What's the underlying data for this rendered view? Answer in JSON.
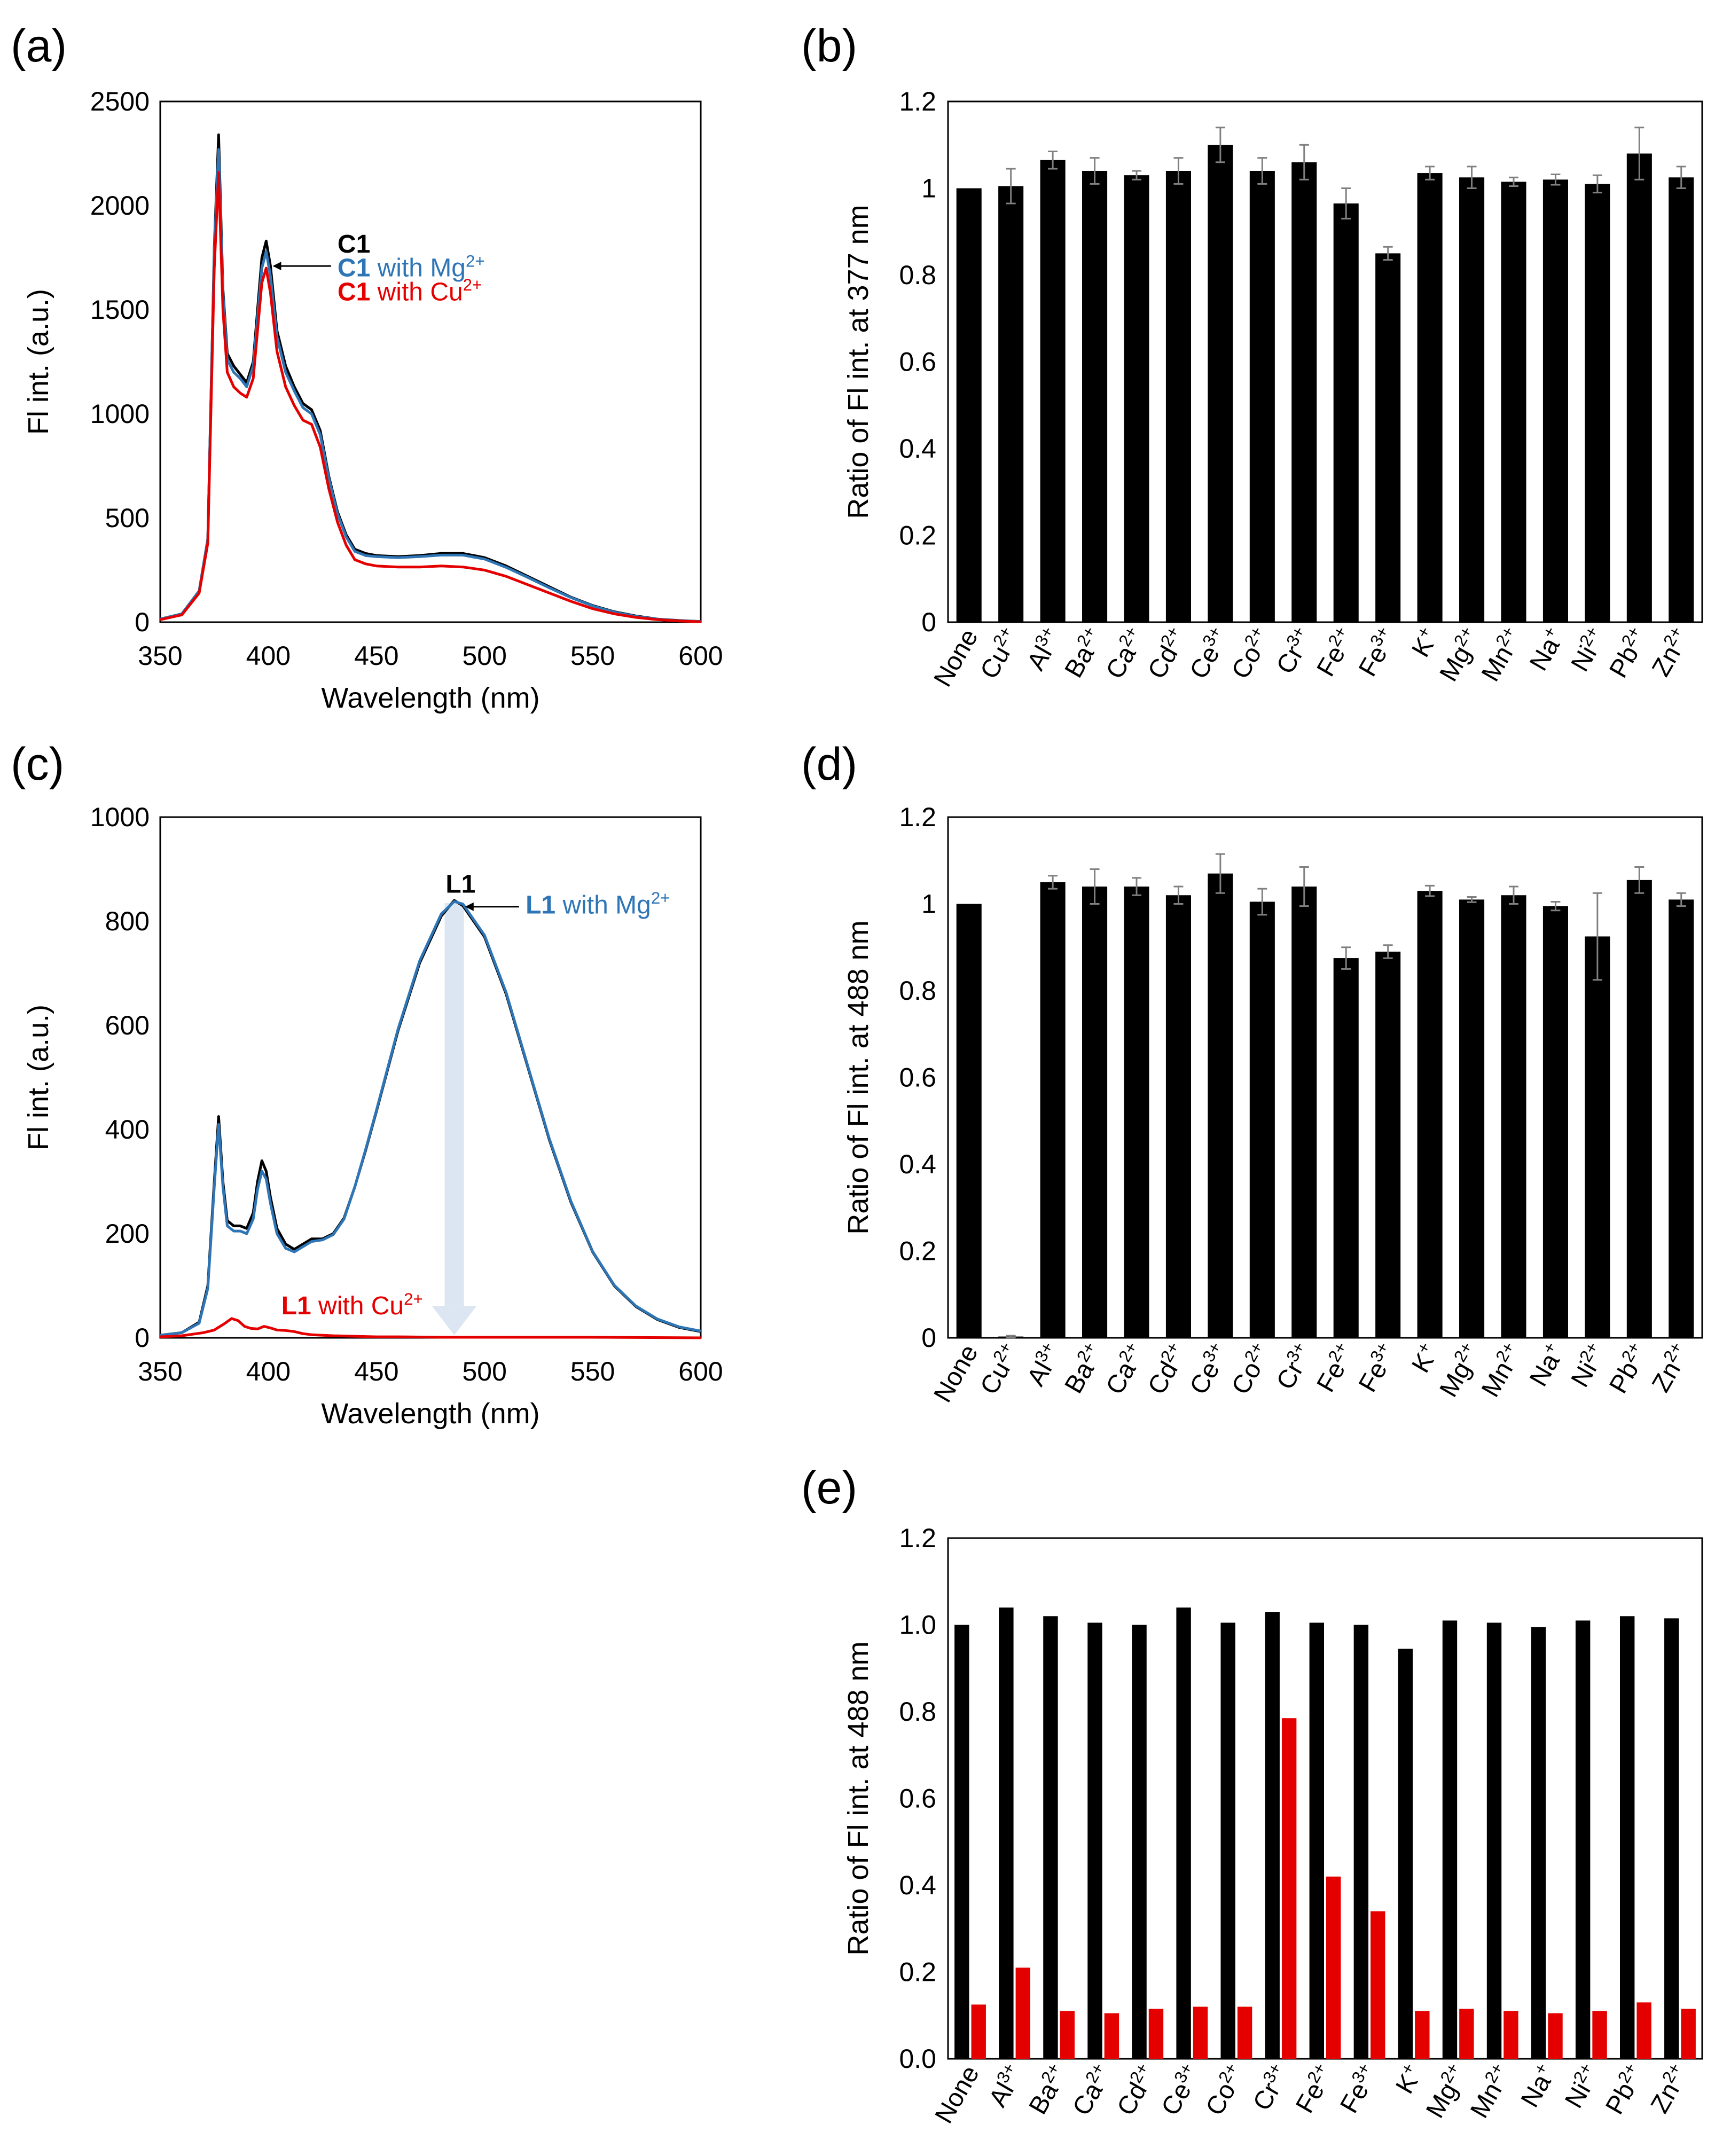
{
  "figure": {
    "panels": [
      "(a)",
      "(b)",
      "(c)",
      "(d)",
      "(e)"
    ]
  },
  "colors": {
    "black": "#000000",
    "blue": "#2E75B6",
    "red": "#E50000",
    "arrow": "#DCE6F2",
    "error_bar": "#808080"
  },
  "chart_data": [
    {
      "panel": "(a)",
      "type": "line",
      "xlabel": "Wavelength (nm)",
      "ylabel": "Fl int. (a.u.)",
      "xlim": [
        350,
        600
      ],
      "ylim": [
        0,
        2500
      ],
      "xticks": [
        350,
        400,
        450,
        500,
        550,
        600
      ],
      "yticks": [
        0,
        500,
        1000,
        1500,
        2000,
        2500
      ],
      "legend": [
        {
          "bold": "C1",
          "rest": "",
          "sup": "",
          "color": "#000000"
        },
        {
          "bold": "C1",
          "rest": " with Mg",
          "sup": "2+",
          "color": "#2E75B6"
        },
        {
          "bold": "C1",
          "rest": " with Cu",
          "sup": "2+",
          "color": "#E50000"
        }
      ],
      "series": [
        {
          "name": "C1",
          "color": "#000000",
          "x": [
            350,
            360,
            368,
            372,
            375,
            377,
            379,
            381,
            384,
            387,
            390,
            393,
            395,
            397,
            399,
            401,
            404,
            408,
            412,
            416,
            420,
            424,
            428,
            432,
            436,
            440,
            445,
            450,
            460,
            470,
            480,
            490,
            500,
            510,
            520,
            530,
            540,
            550,
            560,
            570,
            580,
            590,
            600
          ],
          "y": [
            15,
            40,
            150,
            400,
            1800,
            2340,
            1600,
            1290,
            1230,
            1190,
            1150,
            1250,
            1500,
            1750,
            1830,
            1710,
            1400,
            1230,
            1130,
            1050,
            1020,
            920,
            700,
            530,
            420,
            350,
            330,
            320,
            315,
            320,
            330,
            330,
            310,
            270,
            220,
            170,
            120,
            80,
            50,
            30,
            15,
            8,
            3
          ]
        },
        {
          "name": "C1 with Mg2+",
          "color": "#2E75B6",
          "x": [
            350,
            360,
            368,
            372,
            375,
            377,
            379,
            381,
            384,
            387,
            390,
            393,
            395,
            397,
            399,
            401,
            404,
            408,
            412,
            416,
            420,
            424,
            428,
            432,
            436,
            440,
            445,
            450,
            460,
            470,
            480,
            490,
            500,
            510,
            520,
            530,
            540,
            550,
            560,
            570,
            580,
            590,
            600
          ],
          "y": [
            15,
            40,
            150,
            400,
            1780,
            2270,
            1580,
            1260,
            1200,
            1170,
            1130,
            1230,
            1460,
            1700,
            1780,
            1660,
            1370,
            1200,
            1110,
            1030,
            1000,
            900,
            690,
            520,
            410,
            340,
            320,
            315,
            310,
            315,
            322,
            322,
            303,
            263,
            215,
            165,
            118,
            78,
            48,
            28,
            14,
            7,
            3
          ]
        },
        {
          "name": "C1 with Cu2+",
          "color": "#E50000",
          "x": [
            350,
            360,
            368,
            372,
            375,
            377,
            379,
            381,
            384,
            387,
            390,
            393,
            395,
            397,
            399,
            401,
            404,
            408,
            412,
            416,
            420,
            424,
            428,
            432,
            436,
            440,
            445,
            450,
            460,
            470,
            480,
            490,
            500,
            510,
            520,
            530,
            540,
            550,
            560,
            570,
            580,
            590,
            600
          ],
          "y": [
            12,
            35,
            140,
            380,
            1700,
            2160,
            1500,
            1200,
            1130,
            1100,
            1080,
            1170,
            1400,
            1630,
            1700,
            1580,
            1300,
            1130,
            1040,
            970,
            950,
            840,
            640,
            480,
            370,
            300,
            280,
            270,
            265,
            265,
            270,
            265,
            250,
            220,
            180,
            140,
            100,
            65,
            40,
            23,
            12,
            6,
            2
          ]
        }
      ]
    },
    {
      "panel": "(b)",
      "type": "bar",
      "ylabel": "Ratio of Fl int. at 377 nm",
      "ylim": [
        0,
        1.2
      ],
      "yticks": [
        0,
        0.2,
        0.4,
        0.6,
        0.8,
        1,
        1.2
      ],
      "ytick_labels": [
        "0",
        "0.2",
        "0.4",
        "0.6",
        "0.8",
        "1",
        "1.2"
      ],
      "categories": [
        "None",
        "Cu2+",
        "Al3+",
        "Ba2+",
        "Ca2+",
        "Cd2+",
        "Ce3+",
        "Co2+",
        "Cr3+",
        "Fe2+",
        "Fe3+",
        "K+",
        "Mg2+",
        "Mn2+",
        "Na+",
        "Ni2+",
        "Pb2+",
        "Zn2+"
      ],
      "category_labels": [
        {
          "base": "None",
          "sup": ""
        },
        {
          "base": "Cu",
          "sup": "2+"
        },
        {
          "base": "Al",
          "sup": "3+"
        },
        {
          "base": "Ba",
          "sup": "2+"
        },
        {
          "base": "Ca",
          "sup": "2+"
        },
        {
          "base": "Cd",
          "sup": "2+"
        },
        {
          "base": "Ce",
          "sup": "3+"
        },
        {
          "base": "Co",
          "sup": "2+"
        },
        {
          "base": "Cr",
          "sup": "3+"
        },
        {
          "base": "Fe",
          "sup": "2+"
        },
        {
          "base": "Fe",
          "sup": "3+"
        },
        {
          "base": "K",
          "sup": "+"
        },
        {
          "base": "Mg",
          "sup": "2+"
        },
        {
          "base": "Mn",
          "sup": "2+"
        },
        {
          "base": "Na",
          "sup": "+"
        },
        {
          "base": "Ni",
          "sup": "2+"
        },
        {
          "base": "Pb",
          "sup": "2+"
        },
        {
          "base": "Zn",
          "sup": "2+"
        }
      ],
      "series": [
        {
          "name": "ratio",
          "color": "#000000",
          "values": [
            1.0,
            1.005,
            1.065,
            1.04,
            1.03,
            1.04,
            1.1,
            1.04,
            1.06,
            0.965,
            0.85,
            1.035,
            1.025,
            1.015,
            1.02,
            1.01,
            1.08,
            1.025
          ],
          "errors": [
            0.0,
            0.04,
            0.02,
            0.03,
            0.01,
            0.03,
            0.04,
            0.03,
            0.04,
            0.035,
            0.015,
            0.015,
            0.025,
            0.01,
            0.012,
            0.02,
            0.06,
            0.025
          ]
        }
      ]
    },
    {
      "panel": "(c)",
      "type": "line",
      "xlabel": "Wavelength (nm)",
      "ylabel": "Fl int. (a.u.)",
      "xlim": [
        350,
        600
      ],
      "ylim": [
        0,
        1000
      ],
      "xticks": [
        350,
        400,
        450,
        500,
        550,
        600
      ],
      "yticks": [
        0,
        200,
        400,
        600,
        800,
        1000
      ],
      "annotations": [
        {
          "bold": "L1",
          "rest": "",
          "sup": "",
          "color": "#000000"
        },
        {
          "bold": "L1",
          "rest": " with Mg",
          "sup": "2+",
          "color": "#2E75B6"
        },
        {
          "bold": "L1",
          "rest": " with Cu",
          "sup": "2+",
          "color": "#E50000"
        }
      ],
      "arrow": {
        "x": 486,
        "from": 835,
        "to": 5
      },
      "series": [
        {
          "name": "L1",
          "color": "#000000",
          "x": [
            350,
            360,
            368,
            372,
            375,
            377,
            379,
            381,
            384,
            387,
            390,
            393,
            395,
            397,
            399,
            401,
            404,
            408,
            412,
            416,
            420,
            425,
            430,
            435,
            440,
            445,
            450,
            460,
            470,
            480,
            486,
            490,
            500,
            510,
            520,
            530,
            540,
            550,
            560,
            570,
            580,
            590,
            600
          ],
          "y": [
            5,
            10,
            30,
            100,
            300,
            425,
            300,
            225,
            215,
            215,
            210,
            240,
            300,
            340,
            320,
            270,
            210,
            180,
            170,
            180,
            190,
            190,
            200,
            230,
            290,
            360,
            435,
            590,
            720,
            810,
            840,
            830,
            770,
            660,
            520,
            380,
            260,
            165,
            100,
            60,
            35,
            20,
            12
          ]
        },
        {
          "name": "L1 with Mg2+",
          "color": "#2E75B6",
          "x": [
            350,
            360,
            368,
            372,
            375,
            377,
            379,
            381,
            384,
            387,
            390,
            393,
            395,
            397,
            399,
            401,
            404,
            408,
            412,
            416,
            420,
            425,
            430,
            435,
            440,
            445,
            450,
            460,
            470,
            480,
            486,
            490,
            500,
            510,
            520,
            530,
            540,
            550,
            560,
            570,
            580,
            590,
            600
          ],
          "y": [
            5,
            10,
            28,
            95,
            290,
            410,
            290,
            215,
            205,
            205,
            200,
            228,
            285,
            320,
            305,
            258,
            200,
            172,
            165,
            175,
            185,
            188,
            198,
            228,
            290,
            362,
            437,
            593,
            724,
            814,
            838,
            833,
            773,
            663,
            522,
            382,
            262,
            166,
            101,
            61,
            36,
            21,
            13
          ]
        },
        {
          "name": "L1 with Cu2+",
          "color": "#E50000",
          "x": [
            350,
            360,
            370,
            375,
            380,
            383,
            386,
            389,
            392,
            395,
            398,
            401,
            404,
            408,
            412,
            416,
            420,
            430,
            440,
            450,
            460,
            480,
            500,
            550,
            600
          ],
          "y": [
            2,
            4,
            10,
            15,
            28,
            37,
            33,
            22,
            18,
            17,
            22,
            19,
            15,
            14,
            12,
            8,
            6,
            4,
            3,
            2,
            2,
            1,
            1,
            1,
            0
          ]
        }
      ]
    },
    {
      "panel": "(d)",
      "type": "bar",
      "ylabel": "Ratio of Fl int. at 488 nm",
      "ylim": [
        0,
        1.2
      ],
      "yticks": [
        0,
        0.2,
        0.4,
        0.6,
        0.8,
        1,
        1.2
      ],
      "ytick_labels": [
        "0",
        "0.2",
        "0.4",
        "0.6",
        "0.8",
        "1",
        "1.2"
      ],
      "categories": [
        "None",
        "Cu2+",
        "Al3+",
        "Ba2+",
        "Ca2+",
        "Cd2+",
        "Ce3+",
        "Co2+",
        "Cr3+",
        "Fe2+",
        "Fe3+",
        "K+",
        "Mg2+",
        "Mn2+",
        "Na+",
        "Ni2+",
        "Pb2+",
        "Zn2+"
      ],
      "category_labels": [
        {
          "base": "None",
          "sup": ""
        },
        {
          "base": "Cu",
          "sup": "2+"
        },
        {
          "base": "Al",
          "sup": "3+"
        },
        {
          "base": "Ba",
          "sup": "2+"
        },
        {
          "base": "Ca",
          "sup": "2+"
        },
        {
          "base": "Cd",
          "sup": "2+"
        },
        {
          "base": "Ce",
          "sup": "3+"
        },
        {
          "base": "Co",
          "sup": "2+"
        },
        {
          "base": "Cr",
          "sup": "3+"
        },
        {
          "base": "Fe",
          "sup": "2+"
        },
        {
          "base": "Fe",
          "sup": "3+"
        },
        {
          "base": "K",
          "sup": "+"
        },
        {
          "base": "Mg",
          "sup": "2+"
        },
        {
          "base": "Mn",
          "sup": "2+"
        },
        {
          "base": "Na",
          "sup": "+"
        },
        {
          "base": "Ni",
          "sup": "2+"
        },
        {
          "base": "Pb",
          "sup": "2+"
        },
        {
          "base": "Zn",
          "sup": "2+"
        }
      ],
      "series": [
        {
          "name": "ratio",
          "color": "#000000",
          "values": [
            1.0,
            0.003,
            1.05,
            1.04,
            1.04,
            1.02,
            1.07,
            1.005,
            1.04,
            0.875,
            0.89,
            1.03,
            1.01,
            1.02,
            0.995,
            0.925,
            1.055,
            1.01
          ],
          "errors": [
            0.0,
            0.002,
            0.015,
            0.04,
            0.02,
            0.02,
            0.045,
            0.03,
            0.045,
            0.025,
            0.015,
            0.012,
            0.006,
            0.02,
            0.01,
            0.1,
            0.03,
            0.015
          ]
        }
      ]
    },
    {
      "panel": "(e)",
      "type": "bar",
      "ylabel": "Ratio of Fl int. at 488 nm",
      "ylim": [
        0,
        1.2
      ],
      "yticks": [
        0,
        0.2,
        0.4,
        0.6,
        0.8,
        1.0,
        1.2
      ],
      "ytick_labels": [
        "0.0",
        "0.2",
        "0.4",
        "0.6",
        "0.8",
        "1.0",
        "1.2"
      ],
      "categories": [
        "None",
        "Al3+",
        "Ba2+",
        "Ca2+",
        "Cd2+",
        "Ce3+",
        "Co2+",
        "Cr3+",
        "Fe2+",
        "Fe3+",
        "K+",
        "Mg2+",
        "Mn2+",
        "Na+",
        "Ni2+",
        "Pb2+",
        "Zn2+"
      ],
      "category_labels": [
        {
          "base": "None",
          "sup": ""
        },
        {
          "base": "Al",
          "sup": "3+"
        },
        {
          "base": "Ba",
          "sup": "2+"
        },
        {
          "base": "Ca",
          "sup": "2+"
        },
        {
          "base": "Cd",
          "sup": "2+"
        },
        {
          "base": "Ce",
          "sup": "3+"
        },
        {
          "base": "Co",
          "sup": "2+"
        },
        {
          "base": "Cr",
          "sup": "3+"
        },
        {
          "base": "Fe",
          "sup": "2+"
        },
        {
          "base": "Fe",
          "sup": "3+"
        },
        {
          "base": "K",
          "sup": "+"
        },
        {
          "base": "Mg",
          "sup": "2+"
        },
        {
          "base": "Mn",
          "sup": "2+"
        },
        {
          "base": "Na",
          "sup": "+"
        },
        {
          "base": "Ni",
          "sup": "2+"
        },
        {
          "base": "Pb",
          "sup": "2+"
        },
        {
          "base": "Zn",
          "sup": "2+"
        }
      ],
      "series": [
        {
          "name": "ratio (black)",
          "color": "#000000",
          "values": [
            1.0,
            1.04,
            1.02,
            1.005,
            1.0,
            1.04,
            1.005,
            1.03,
            1.005,
            1.0,
            0.945,
            1.01,
            1.005,
            0.995,
            1.01,
            1.02,
            1.015
          ]
        },
        {
          "name": "ratio (red)",
          "color": "#E50000",
          "values": [
            0.125,
            0.21,
            0.11,
            0.105,
            0.115,
            0.12,
            0.12,
            0.785,
            0.42,
            0.34,
            0.11,
            0.115,
            0.11,
            0.105,
            0.11,
            0.13,
            0.115
          ]
        }
      ]
    }
  ]
}
